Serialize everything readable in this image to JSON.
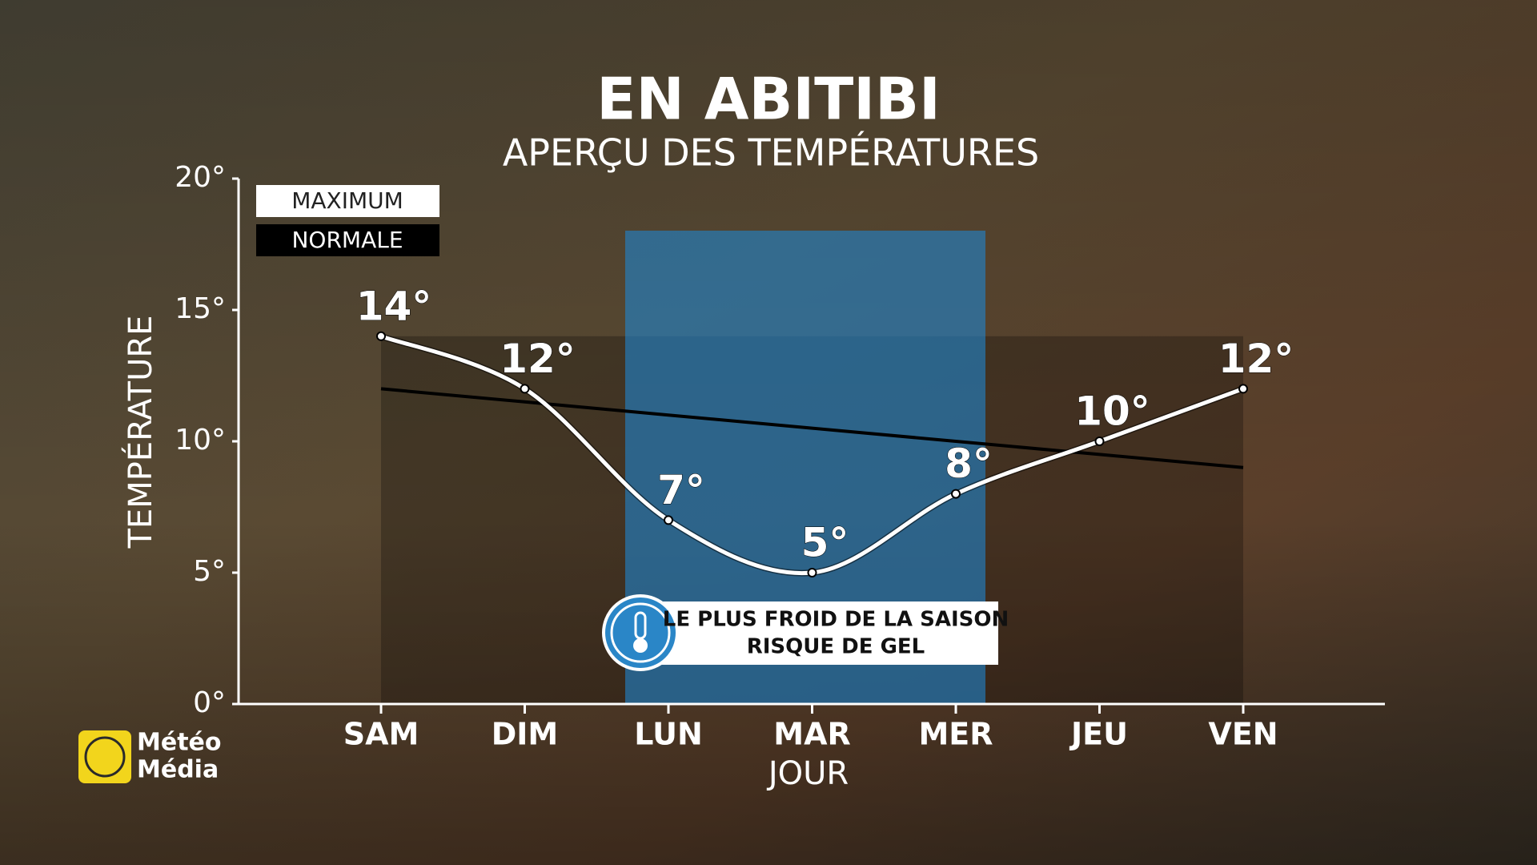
{
  "chart_data": {
    "type": "line",
    "title": "EN ABITIBI",
    "subtitle": "APERÇU DES TEMPÉRATURES",
    "x_label": "JOUR",
    "y_label": "TEMPÉRATURE",
    "categories": [
      "SAM",
      "DIM",
      "LUN",
      "MAR",
      "MER",
      "JEU",
      "VEN"
    ],
    "series": [
      {
        "name": "MAXIMUM",
        "color": "#ffffff",
        "values": [
          14,
          12,
          7,
          5,
          8,
          10,
          12
        ],
        "value_labels": [
          "14°",
          "12°",
          "7°",
          "5°",
          "8°",
          "10°",
          "12°"
        ]
      },
      {
        "name": "NORMALE",
        "color": "#000000",
        "values": [
          12,
          11.5,
          11,
          10.5,
          10,
          9.5,
          9
        ]
      }
    ],
    "ylim": [
      0,
      20
    ],
    "yticks": [
      {
        "value": 0,
        "label": "0°"
      },
      {
        "value": 5,
        "label": "5°"
      },
      {
        "value": 10,
        "label": "10°"
      },
      {
        "value": 15,
        "label": "15°"
      },
      {
        "value": 20,
        "label": "20°"
      }
    ],
    "annotation": [
      "LE PLUS FROID DE LA SAISON",
      "RISQUE DE GEL"
    ]
  },
  "brand": [
    "Météo",
    "Média"
  ]
}
